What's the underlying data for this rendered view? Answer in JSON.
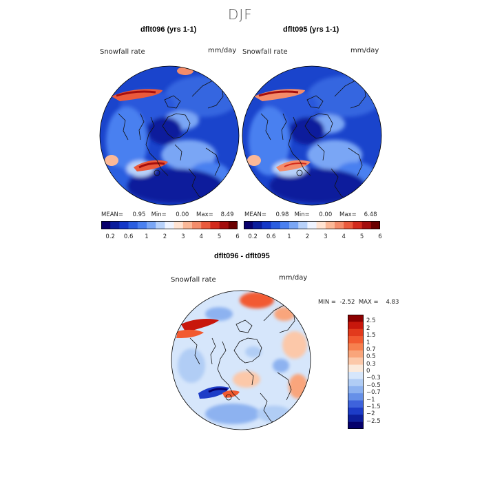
{
  "season_title": "DJF",
  "panels": [
    {
      "title": "dflt096 (yrs 1-1)",
      "field_label": "Snowfall rate",
      "units": "mm/day",
      "stats": {
        "mean_label": "MEAN=",
        "mean": "0.95",
        "min_label": "Min=",
        "min": "0.00",
        "max_label": "Max=",
        "max": "8.49"
      }
    },
    {
      "title": "dflt095 (yrs 1-1)",
      "field_label": "Snowfall rate",
      "units": "mm/day",
      "stats": {
        "mean_label": "MEAN=",
        "mean": "0.98",
        "min_label": "Min=",
        "min": "0.00",
        "max_label": "Max=",
        "max": "6.48"
      }
    }
  ],
  "abs_colorbar": {
    "colors": [
      "#08006b",
      "#0a1d9c",
      "#1438c8",
      "#2a5ee0",
      "#4a80f0",
      "#7aa6f5",
      "#b7d1fa",
      "#eef3ff",
      "#ffe3d2",
      "#fbb897",
      "#f48c6a",
      "#ea5a3c",
      "#d32a1c",
      "#a40e0e",
      "#6b0000"
    ],
    "tick_labels": [
      "0.2",
      "0.6",
      "1",
      "2",
      "3",
      "4",
      "5",
      "6"
    ]
  },
  "diff_panel": {
    "title": "dflt096 - dflt095",
    "field_label": "Snowfall rate",
    "units": "mm/day",
    "min_label": "MIN =",
    "min": "-2.52",
    "max_label": "MAX =",
    "max": "4.83",
    "colorbar": {
      "labels": [
        "2.5",
        "2",
        "1.5",
        "1",
        "0.7",
        "0.5",
        "0.3",
        "0",
        "−0.3",
        "−0.5",
        "−0.7",
        "−1",
        "−1.5",
        "−2",
        "−2.5"
      ],
      "colors": [
        "#8c0000",
        "#c8170c",
        "#e23a1c",
        "#f25a30",
        "#f7804f",
        "#f9a57b",
        "#fcc8a9",
        "#fbeadc",
        "#d6e6fb",
        "#b1cdf5",
        "#8db2f0",
        "#6690e8",
        "#3e63dc",
        "#1d3cc7",
        "#0d1e9b",
        "#05006b"
      ]
    }
  },
  "chart_data": [
    {
      "type": "heatmap",
      "title": "dflt096 (yrs 1-1)",
      "variable": "Snowfall rate",
      "units": "mm/day",
      "projection": "north polar stereographic",
      "mean": 0.95,
      "min": 0.0,
      "max": 8.49,
      "levels": [
        0.2,
        0.6,
        1,
        2,
        3,
        4,
        5,
        6
      ]
    },
    {
      "type": "heatmap",
      "title": "dflt095 (yrs 1-1)",
      "variable": "Snowfall rate",
      "units": "mm/day",
      "projection": "north polar stereographic",
      "mean": 0.98,
      "min": 0.0,
      "max": 6.48,
      "levels": [
        0.2,
        0.6,
        1,
        2,
        3,
        4,
        5,
        6
      ]
    },
    {
      "type": "heatmap",
      "title": "dflt096 - dflt095",
      "variable": "Snowfall rate",
      "units": "mm/day",
      "projection": "north polar stereographic",
      "min": -2.52,
      "max": 4.83,
      "levels": [
        -2.5,
        -2,
        -1.5,
        -1,
        -0.7,
        -0.5,
        -0.3,
        0,
        0.3,
        0.5,
        0.7,
        1,
        1.5,
        2,
        2.5
      ]
    }
  ]
}
